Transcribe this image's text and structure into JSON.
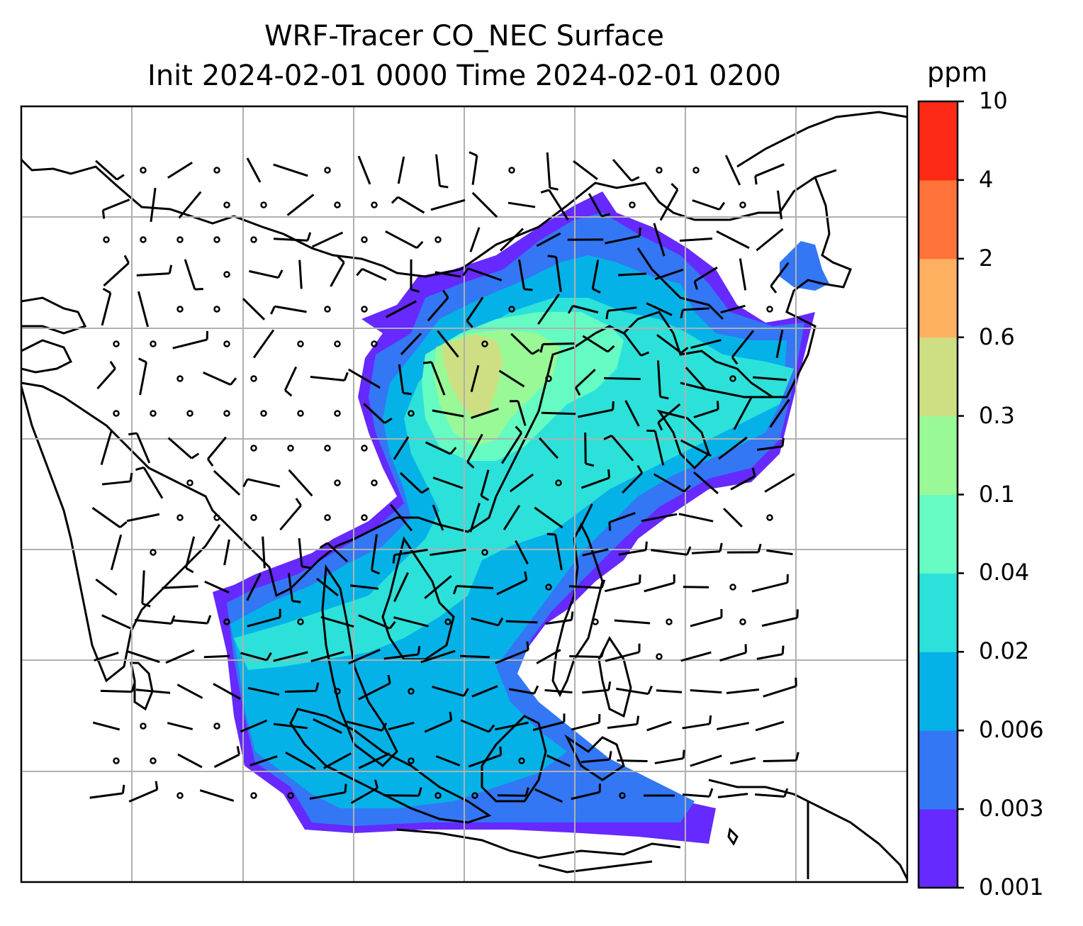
{
  "title_line1": "WRF-Tracer CO_NEC Surface",
  "title_line2": "Init 2024-02-01 0000 Time 2024-02-01 0200",
  "colorbar": {
    "unit": "ppm",
    "ticks": [
      "0.001",
      "0.003",
      "0.006",
      "0.02",
      "0.04",
      "0.1",
      "0.3",
      "0.6",
      "2",
      "4",
      "10"
    ],
    "colors": [
      "#6629ff",
      "#3377f5",
      "#04b2e8",
      "#2de1db",
      "#66fbc3",
      "#98f996",
      "#cddf82",
      "#ffb060",
      "#ff7239",
      "#ff2a15"
    ]
  },
  "plume_colors": {
    "edge": "#6629ff",
    "low": "#3377f5",
    "mid": "#04b2e8",
    "mid2": "#2de1db",
    "mid3": "#66fbc3",
    "high": "#98f996",
    "peak": "#cddf82"
  },
  "map_colors": {
    "coastline": "#000000",
    "grid": "#b0b0b0",
    "barb": "#000000"
  }
}
